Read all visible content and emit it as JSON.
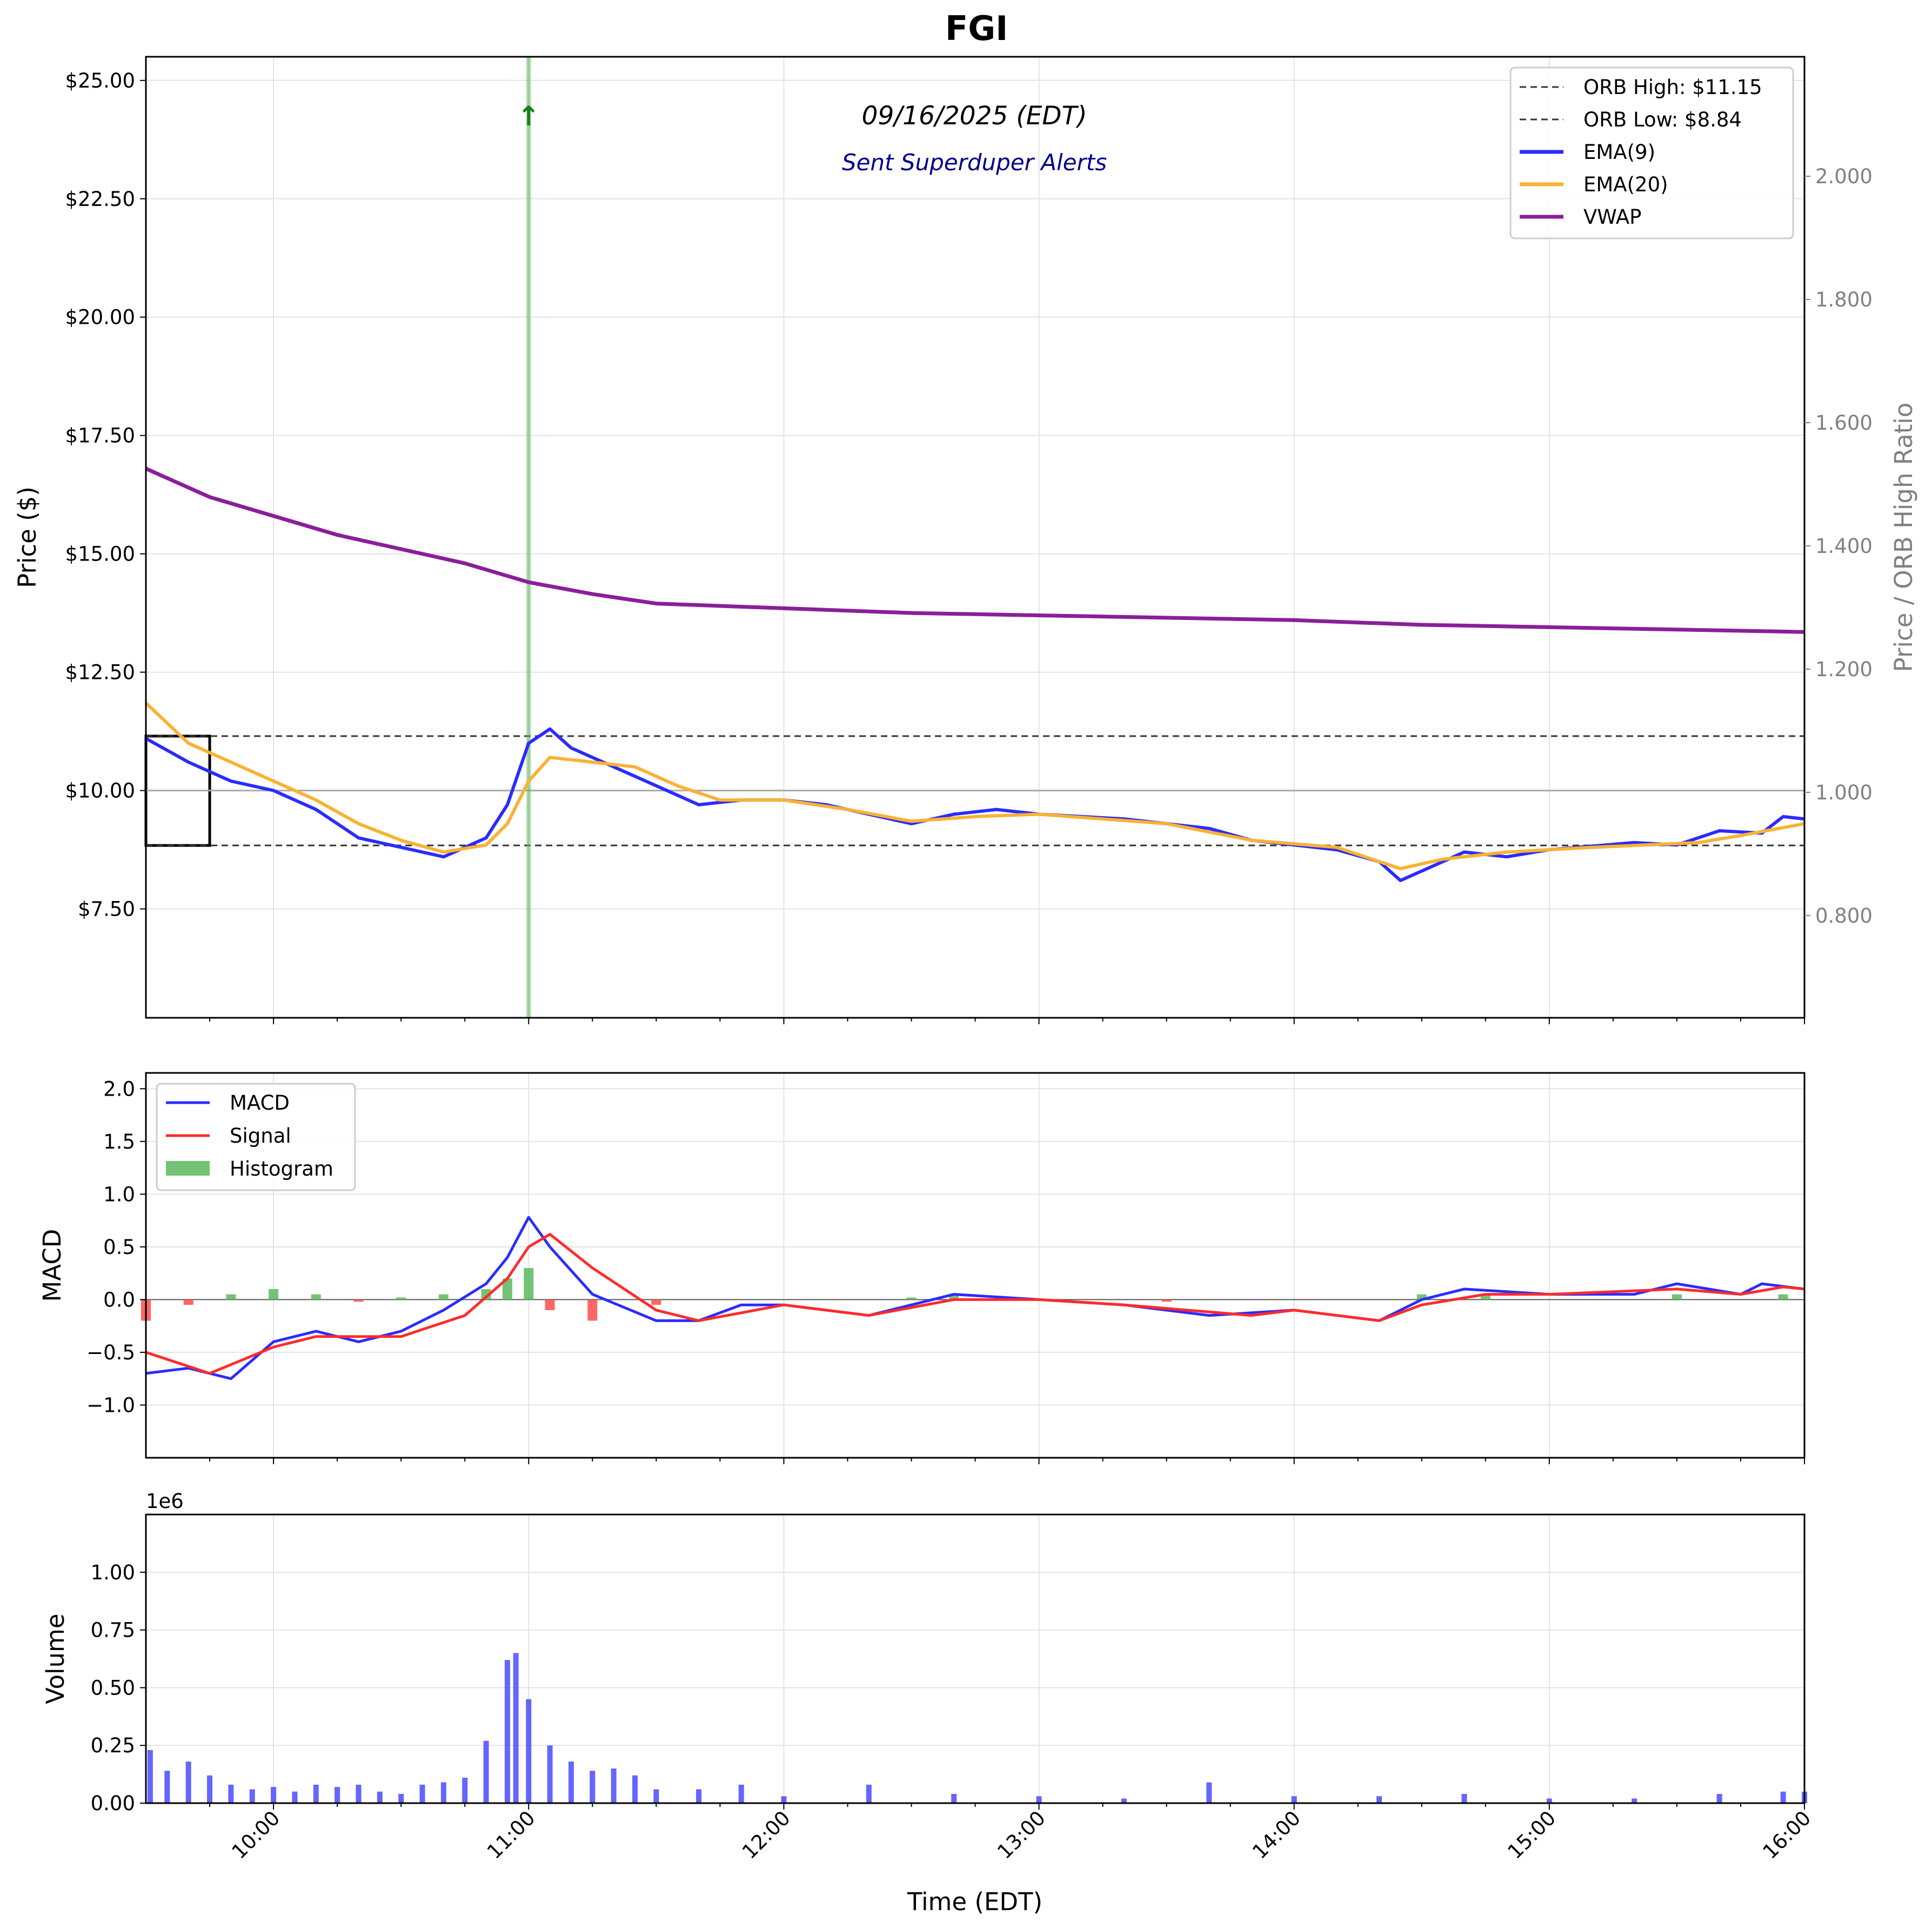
{
  "chart_data": [
    {
      "type": "candlestick",
      "title": "FGI",
      "date_label": "09/16/2025 (EDT)",
      "alert_label": "Sent Superduper Alerts",
      "alert_marker": "↑",
      "ylabel": "Price ($)",
      "ylabel_right": "Price / ORB High Ratio",
      "ylim": [
        5.2,
        25.5
      ],
      "ylim_right": [
        0.634,
        2.194
      ],
      "yticks": [
        {
          "v": 7.5,
          "label": "$7.50"
        },
        {
          "v": 10.0,
          "label": "$10.00"
        },
        {
          "v": 12.5,
          "label": "$12.50"
        },
        {
          "v": 15.0,
          "label": "$15.00"
        },
        {
          "v": 17.5,
          "label": "$17.50"
        },
        {
          "v": 20.0,
          "label": "$20.00"
        },
        {
          "v": 22.5,
          "label": "$22.50"
        },
        {
          "v": 25.0,
          "label": "$25.00"
        }
      ],
      "yticks_right": [
        {
          "v": 0.8,
          "label": "0.800"
        },
        {
          "v": 1.0,
          "label": "1.000"
        },
        {
          "v": 1.2,
          "label": "1.200"
        },
        {
          "v": 1.4,
          "label": "1.400"
        },
        {
          "v": 1.6,
          "label": "1.600"
        },
        {
          "v": 1.8,
          "label": "1.800"
        },
        {
          "v": 2.0,
          "label": "2.000"
        }
      ],
      "xlim": [
        "09:30",
        "16:00"
      ],
      "grid": true,
      "orb_high": 11.15,
      "orb_low": 8.84,
      "orb_window": [
        "09:30",
        "09:45"
      ],
      "reference_line": 10.0,
      "alert_time": "11:00",
      "legend": {
        "position": "top-right",
        "entries": [
          {
            "label": "ORB High: $11.15",
            "style": "dashed",
            "color": "#000000"
          },
          {
            "label": "ORB Low: $8.84",
            "style": "dashed",
            "color": "#000000"
          },
          {
            "label": "EMA(9)",
            "style": "solid",
            "color": "#2b2bff"
          },
          {
            "label": "EMA(20)",
            "style": "solid",
            "color": "#f9b233"
          },
          {
            "label": "VWAP",
            "style": "solid",
            "color": "#8b1e9b"
          }
        ]
      },
      "series": [
        {
          "name": "EMA(9)",
          "color": "#2b2bff",
          "points": [
            [
              "09:30",
              11.1
            ],
            [
              "09:40",
              10.6
            ],
            [
              "09:50",
              10.2
            ],
            [
              "10:00",
              10.0
            ],
            [
              "10:10",
              9.6
            ],
            [
              "10:20",
              9.0
            ],
            [
              "10:30",
              8.8
            ],
            [
              "10:40",
              8.6
            ],
            [
              "10:50",
              9.0
            ],
            [
              "10:55",
              9.7
            ],
            [
              "11:00",
              11.0
            ],
            [
              "11:05",
              11.3
            ],
            [
              "11:10",
              10.9
            ],
            [
              "11:20",
              10.5
            ],
            [
              "11:30",
              10.1
            ],
            [
              "11:40",
              9.7
            ],
            [
              "11:50",
              9.8
            ],
            [
              "12:00",
              9.8
            ],
            [
              "12:10",
              9.7
            ],
            [
              "12:20",
              9.5
            ],
            [
              "12:30",
              9.3
            ],
            [
              "12:40",
              9.5
            ],
            [
              "12:50",
              9.6
            ],
            [
              "13:00",
              9.5
            ],
            [
              "13:20",
              9.4
            ],
            [
              "13:40",
              9.2
            ],
            [
              "13:50",
              8.95
            ],
            [
              "14:00",
              8.85
            ],
            [
              "14:10",
              8.75
            ],
            [
              "14:20",
              8.5
            ],
            [
              "14:25",
              8.1
            ],
            [
              "14:30",
              8.3
            ],
            [
              "14:40",
              8.7
            ],
            [
              "14:50",
              8.6
            ],
            [
              "15:00",
              8.75
            ],
            [
              "15:20",
              8.9
            ],
            [
              "15:30",
              8.85
            ],
            [
              "15:40",
              9.15
            ],
            [
              "15:50",
              9.1
            ],
            [
              "15:55",
              9.45
            ],
            [
              "16:00",
              9.4
            ]
          ]
        },
        {
          "name": "EMA(20)",
          "color": "#f9b233",
          "points": [
            [
              "09:30",
              11.85
            ],
            [
              "09:40",
              11.0
            ],
            [
              "09:50",
              10.6
            ],
            [
              "10:00",
              10.2
            ],
            [
              "10:10",
              9.8
            ],
            [
              "10:20",
              9.3
            ],
            [
              "10:30",
              8.95
            ],
            [
              "10:40",
              8.7
            ],
            [
              "10:50",
              8.85
            ],
            [
              "10:55",
              9.3
            ],
            [
              "11:00",
              10.2
            ],
            [
              "11:05",
              10.7
            ],
            [
              "11:15",
              10.6
            ],
            [
              "11:25",
              10.5
            ],
            [
              "11:35",
              10.1
            ],
            [
              "11:45",
              9.8
            ],
            [
              "12:00",
              9.8
            ],
            [
              "12:15",
              9.6
            ],
            [
              "12:30",
              9.35
            ],
            [
              "12:45",
              9.45
            ],
            [
              "13:00",
              9.5
            ],
            [
              "13:30",
              9.3
            ],
            [
              "13:50",
              8.95
            ],
            [
              "14:10",
              8.8
            ],
            [
              "14:25",
              8.35
            ],
            [
              "14:35",
              8.55
            ],
            [
              "14:50",
              8.7
            ],
            [
              "15:10",
              8.8
            ],
            [
              "15:35",
              8.9
            ],
            [
              "15:45",
              9.05
            ],
            [
              "16:00",
              9.3
            ]
          ]
        },
        {
          "name": "VWAP",
          "color": "#8b1e9b",
          "points": [
            [
              "09:30",
              16.8
            ],
            [
              "09:45",
              16.2
            ],
            [
              "10:00",
              15.8
            ],
            [
              "10:15",
              15.4
            ],
            [
              "10:30",
              15.1
            ],
            [
              "10:45",
              14.8
            ],
            [
              "11:00",
              14.4
            ],
            [
              "11:15",
              14.15
            ],
            [
              "11:30",
              13.95
            ],
            [
              "12:00",
              13.85
            ],
            [
              "12:30",
              13.75
            ],
            [
              "13:00",
              13.7
            ],
            [
              "13:30",
              13.65
            ],
            [
              "14:00",
              13.6
            ],
            [
              "14:30",
              13.5
            ],
            [
              "15:00",
              13.45
            ],
            [
              "15:30",
              13.4
            ],
            [
              "16:00",
              13.35
            ]
          ]
        }
      ]
    },
    {
      "type": "line",
      "ylabel": "MACD",
      "ylim": [
        -1.5,
        2.15
      ],
      "yticks": [
        {
          "v": -1.0,
          "label": "−1.0"
        },
        {
          "v": -0.5,
          "label": "−0.5"
        },
        {
          "v": 0.0,
          "label": "0.0"
        },
        {
          "v": 0.5,
          "label": "0.5"
        },
        {
          "v": 1.0,
          "label": "1.0"
        },
        {
          "v": 1.5,
          "label": "1.5"
        },
        {
          "v": 2.0,
          "label": "2.0"
        }
      ],
      "grid": true,
      "legend": {
        "position": "top-left",
        "entries": [
          {
            "label": "MACD",
            "style": "solid",
            "color": "#2b2bff"
          },
          {
            "label": "Signal",
            "style": "solid",
            "color": "#ff2b2b"
          },
          {
            "label": "Histogram",
            "style": "patch",
            "color": "#5cb85c"
          }
        ]
      },
      "series": [
        {
          "name": "MACD",
          "color": "#2b2bff",
          "points": [
            [
              "09:30",
              -0.7
            ],
            [
              "09:40",
              -0.65
            ],
            [
              "09:50",
              -0.75
            ],
            [
              "10:00",
              -0.4
            ],
            [
              "10:10",
              -0.3
            ],
            [
              "10:20",
              -0.4
            ],
            [
              "10:30",
              -0.3
            ],
            [
              "10:40",
              -0.1
            ],
            [
              "10:50",
              0.15
            ],
            [
              "10:55",
              0.4
            ],
            [
              "11:00",
              0.78
            ],
            [
              "11:05",
              0.5
            ],
            [
              "11:15",
              0.05
            ],
            [
              "11:30",
              -0.2
            ],
            [
              "11:40",
              -0.2
            ],
            [
              "11:50",
              -0.05
            ],
            [
              "12:00",
              -0.05
            ],
            [
              "12:20",
              -0.15
            ],
            [
              "12:40",
              0.05
            ],
            [
              "13:00",
              0.0
            ],
            [
              "13:20",
              -0.05
            ],
            [
              "13:40",
              -0.15
            ],
            [
              "14:00",
              -0.1
            ],
            [
              "14:20",
              -0.2
            ],
            [
              "14:30",
              0.0
            ],
            [
              "14:40",
              0.1
            ],
            [
              "15:00",
              0.05
            ],
            [
              "15:20",
              0.05
            ],
            [
              "15:30",
              0.15
            ],
            [
              "15:45",
              0.05
            ],
            [
              "15:50",
              0.15
            ],
            [
              "16:00",
              0.1
            ]
          ]
        },
        {
          "name": "Signal",
          "color": "#ff2b2b",
          "points": [
            [
              "09:30",
              -0.5
            ],
            [
              "09:45",
              -0.7
            ],
            [
              "10:00",
              -0.45
            ],
            [
              "10:10",
              -0.35
            ],
            [
              "10:30",
              -0.35
            ],
            [
              "10:45",
              -0.15
            ],
            [
              "10:55",
              0.2
            ],
            [
              "11:00",
              0.5
            ],
            [
              "11:05",
              0.62
            ],
            [
              "11:15",
              0.3
            ],
            [
              "11:30",
              -0.1
            ],
            [
              "11:40",
              -0.2
            ],
            [
              "12:00",
              -0.05
            ],
            [
              "12:20",
              -0.15
            ],
            [
              "12:40",
              0.0
            ],
            [
              "13:00",
              0.0
            ],
            [
              "13:20",
              -0.05
            ],
            [
              "13:50",
              -0.15
            ],
            [
              "14:00",
              -0.1
            ],
            [
              "14:20",
              -0.2
            ],
            [
              "14:30",
              -0.05
            ],
            [
              "14:45",
              0.05
            ],
            [
              "15:00",
              0.05
            ],
            [
              "15:30",
              0.1
            ],
            [
              "15:45",
              0.05
            ],
            [
              "15:55",
              0.12
            ],
            [
              "16:00",
              0.1
            ]
          ]
        },
        {
          "name": "Histogram",
          "color": "#5cb85c",
          "negative_color": "#ff4c4c",
          "points": [
            [
              "09:30",
              -0.2
            ],
            [
              "09:40",
              -0.05
            ],
            [
              "09:50",
              0.05
            ],
            [
              "10:00",
              0.1
            ],
            [
              "10:10",
              0.05
            ],
            [
              "10:20",
              -0.02
            ],
            [
              "10:30",
              0.02
            ],
            [
              "10:40",
              0.05
            ],
            [
              "10:50",
              0.1
            ],
            [
              "10:55",
              0.2
            ],
            [
              "11:00",
              0.3
            ],
            [
              "11:05",
              -0.1
            ],
            [
              "11:15",
              -0.2
            ],
            [
              "11:30",
              -0.05
            ],
            [
              "11:40",
              0.0
            ],
            [
              "12:00",
              0.0
            ],
            [
              "12:30",
              0.02
            ],
            [
              "12:40",
              0.05
            ],
            [
              "13:00",
              0.0
            ],
            [
              "13:30",
              -0.02
            ],
            [
              "14:00",
              0.0
            ],
            [
              "14:30",
              0.05
            ],
            [
              "14:45",
              0.05
            ],
            [
              "15:00",
              0.0
            ],
            [
              "15:30",
              0.05
            ],
            [
              "15:45",
              0.0
            ],
            [
              "15:55",
              0.05
            ],
            [
              "16:00",
              0.0
            ]
          ]
        }
      ]
    },
    {
      "type": "bar",
      "ylabel": "Volume",
      "xlabel": "Time (EDT)",
      "offset_label": "1e6",
      "ylim": [
        0,
        1.25
      ],
      "yticks": [
        {
          "v": 0.0,
          "label": "0.00"
        },
        {
          "v": 0.25,
          "label": "0.25"
        },
        {
          "v": 0.5,
          "label": "0.50"
        },
        {
          "v": 0.75,
          "label": "0.75"
        },
        {
          "v": 1.0,
          "label": "1.00"
        }
      ],
      "xticks": [
        "10:00",
        "11:00",
        "12:00",
        "13:00",
        "14:00",
        "15:00",
        "16:00"
      ],
      "grid": true,
      "color": "#4a4aff",
      "points": [
        [
          "09:31",
          0.23
        ],
        [
          "09:35",
          0.14
        ],
        [
          "09:40",
          0.18
        ],
        [
          "09:45",
          0.12
        ],
        [
          "09:50",
          0.08
        ],
        [
          "09:55",
          0.06
        ],
        [
          "10:00",
          0.07
        ],
        [
          "10:05",
          0.05
        ],
        [
          "10:10",
          0.08
        ],
        [
          "10:15",
          0.07
        ],
        [
          "10:20",
          0.08
        ],
        [
          "10:25",
          0.05
        ],
        [
          "10:30",
          0.04
        ],
        [
          "10:35",
          0.08
        ],
        [
          "10:40",
          0.09
        ],
        [
          "10:45",
          0.11
        ],
        [
          "10:50",
          0.27
        ],
        [
          "10:55",
          0.62
        ],
        [
          "10:57",
          0.65
        ],
        [
          "11:00",
          0.45
        ],
        [
          "11:05",
          0.25
        ],
        [
          "11:10",
          0.18
        ],
        [
          "11:15",
          0.14
        ],
        [
          "11:20",
          0.15
        ],
        [
          "11:25",
          0.12
        ],
        [
          "11:30",
          0.06
        ],
        [
          "11:40",
          0.06
        ],
        [
          "11:50",
          0.08
        ],
        [
          "12:00",
          0.03
        ],
        [
          "12:20",
          0.08
        ],
        [
          "12:40",
          0.04
        ],
        [
          "13:00",
          0.03
        ],
        [
          "13:20",
          0.02
        ],
        [
          "13:40",
          0.09
        ],
        [
          "14:00",
          0.03
        ],
        [
          "14:20",
          0.03
        ],
        [
          "14:40",
          0.04
        ],
        [
          "15:00",
          0.02
        ],
        [
          "15:20",
          0.02
        ],
        [
          "15:40",
          0.04
        ],
        [
          "15:55",
          0.05
        ],
        [
          "16:00",
          0.05
        ]
      ]
    }
  ]
}
